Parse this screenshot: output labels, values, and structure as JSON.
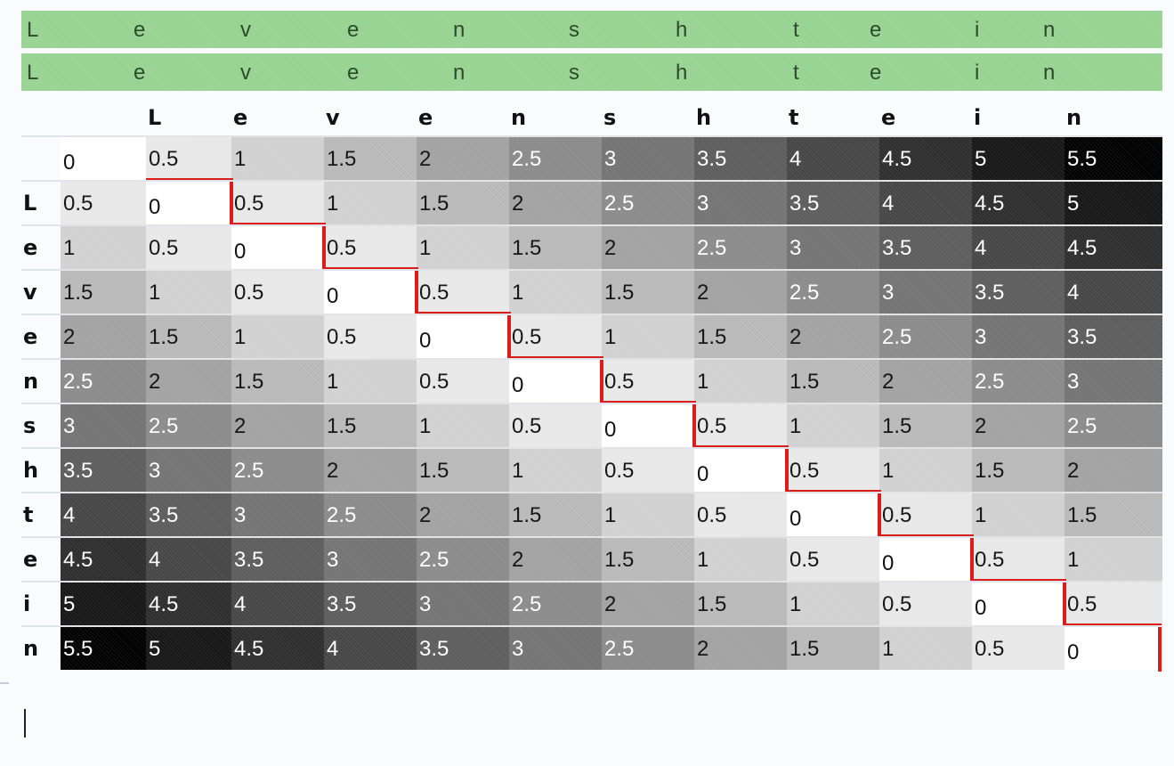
{
  "alignment": {
    "rows": [
      [
        "L",
        "e",
        "v",
        "e",
        "n",
        "s",
        "h",
        "t",
        "e",
        "i",
        "n"
      ],
      [
        "L",
        "e",
        "v",
        "e",
        "n",
        "s",
        "h",
        "t",
        "e",
        "i",
        "n"
      ]
    ]
  },
  "matrix": {
    "column_headers": [
      "L",
      "e",
      "v",
      "e",
      "n",
      "s",
      "h",
      "t",
      "e",
      "i",
      "n"
    ],
    "row_headers": [
      "L",
      "e",
      "v",
      "e",
      "n",
      "s",
      "h",
      "t",
      "e",
      "i",
      "n"
    ],
    "rows": [
      [
        "0",
        "0.5",
        "1",
        "1.5",
        "2",
        "2.5",
        "3",
        "3.5",
        "4",
        "4.5",
        "5",
        "5.5"
      ],
      [
        "0.5",
        "0",
        "0.5",
        "1",
        "1.5",
        "2",
        "2.5",
        "3",
        "3.5",
        "4",
        "4.5",
        "5"
      ],
      [
        "1",
        "0.5",
        "0",
        "0.5",
        "1",
        "1.5",
        "2",
        "2.5",
        "3",
        "3.5",
        "4",
        "4.5"
      ],
      [
        "1.5",
        "1",
        "0.5",
        "0",
        "0.5",
        "1",
        "1.5",
        "2",
        "2.5",
        "3",
        "3.5",
        "4"
      ],
      [
        "2",
        "1.5",
        "1",
        "0.5",
        "0",
        "0.5",
        "1",
        "1.5",
        "2",
        "2.5",
        "3",
        "3.5"
      ],
      [
        "2.5",
        "2",
        "1.5",
        "1",
        "0.5",
        "0",
        "0.5",
        "1",
        "1.5",
        "2",
        "2.5",
        "3"
      ],
      [
        "3",
        "2.5",
        "2",
        "1.5",
        "1",
        "0.5",
        "0",
        "0.5",
        "1",
        "1.5",
        "2",
        "2.5"
      ],
      [
        "3.5",
        "3",
        "2.5",
        "2",
        "1.5",
        "1",
        "0.5",
        "0",
        "0.5",
        "1",
        "1.5",
        "2"
      ],
      [
        "4",
        "3.5",
        "3",
        "2.5",
        "2",
        "1.5",
        "1",
        "0.5",
        "0",
        "0.5",
        "1",
        "1.5"
      ],
      [
        "4.5",
        "4",
        "3.5",
        "3",
        "2.5",
        "2",
        "1.5",
        "1",
        "0.5",
        "0",
        "0.5",
        "1"
      ],
      [
        "5",
        "4.5",
        "4",
        "3.5",
        "3",
        "2.5",
        "2",
        "1.5",
        "1",
        "0.5",
        "0",
        "0.5"
      ],
      [
        "5.5",
        "5",
        "4.5",
        "4",
        "3.5",
        "3",
        "2.5",
        "2",
        "1.5",
        "1",
        "0.5",
        "0"
      ]
    ],
    "max_value": 5.5
  },
  "colors": {
    "alignment_band": "#96d391",
    "path": "#dd1c1c",
    "low": "#ffffff",
    "high": "#000000"
  },
  "icons": {
    "cursor": "text-cursor-icon"
  }
}
